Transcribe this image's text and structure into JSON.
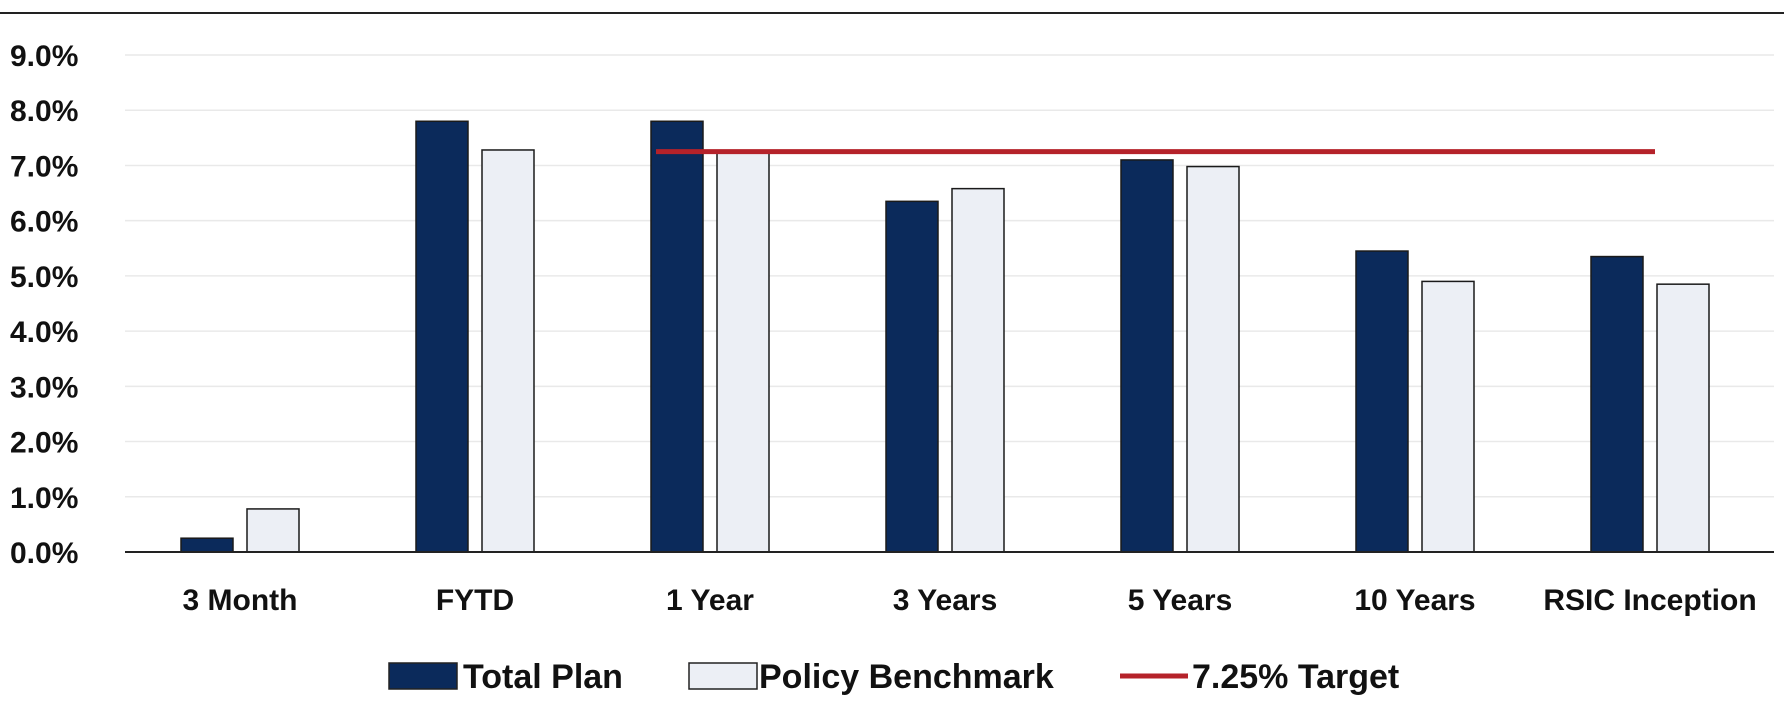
{
  "colors": {
    "total_plan": "#0b2a5b",
    "policy_benchmark": "#eceff5",
    "target": "#b5222a",
    "axis": "#222222",
    "grid": "#e9e9e9"
  },
  "chart_data": {
    "type": "bar",
    "categories": [
      "3 Month",
      "FYTD",
      "1 Year",
      "3 Years",
      "5 Years",
      "10 Years",
      "RSIC Inception"
    ],
    "series": [
      {
        "name": "Total Plan",
        "values": [
          0.25,
          7.8,
          7.8,
          6.35,
          7.1,
          5.45,
          5.35
        ]
      },
      {
        "name": "Policy Benchmark",
        "values": [
          0.78,
          7.28,
          7.25,
          6.58,
          6.98,
          4.9,
          4.85
        ]
      }
    ],
    "target_line": {
      "name": "7.25% Target",
      "value": 7.25,
      "from_category": "1 Year",
      "to_category": "RSIC Inception"
    },
    "ylim": [
      0,
      9
    ],
    "yticks": [
      "0.0%",
      "1.0%",
      "2.0%",
      "3.0%",
      "4.0%",
      "5.0%",
      "6.0%",
      "7.0%",
      "8.0%",
      "9.0%"
    ],
    "grid": true,
    "legend": {
      "position": "bottom",
      "entries": [
        "Total Plan",
        "Policy Benchmark",
        "7.25% Target"
      ]
    },
    "title": "",
    "xlabel": "",
    "ylabel": ""
  }
}
